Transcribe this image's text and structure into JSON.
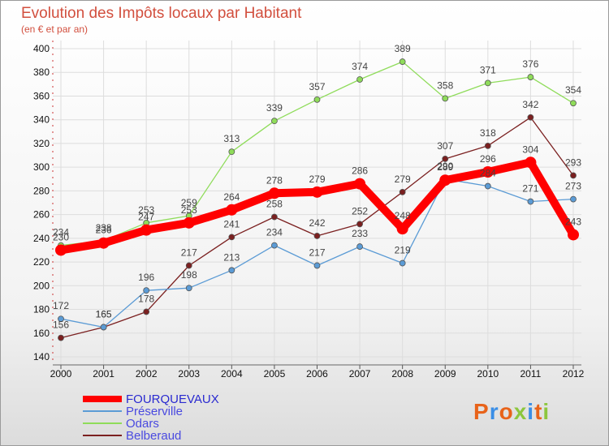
{
  "chart_data": {
    "type": "line",
    "title": "Evolution des Impôts locaux par Habitant",
    "subtitle": "(en € et par an)",
    "xlabel": "",
    "ylabel": "",
    "ylim": [
      140,
      400
    ],
    "yticks": [
      140,
      160,
      180,
      200,
      220,
      240,
      260,
      280,
      300,
      320,
      340,
      360,
      380,
      400
    ],
    "x": [
      2000,
      2001,
      2002,
      2003,
      2004,
      2005,
      2006,
      2007,
      2008,
      2009,
      2010,
      2011,
      2012
    ],
    "grid": true,
    "legend_position": "bottom-left",
    "series": [
      {
        "name": "FOURQUEVAUX",
        "color": "#ff0000",
        "values": [
          230,
          236,
          247,
          253,
          264,
          278,
          279,
          286,
          248,
          289,
          296,
          304,
          243
        ]
      },
      {
        "name": "Préserville",
        "color": "#5b9bd5",
        "values": [
          172,
          165,
          196,
          198,
          213,
          234,
          217,
          233,
          219,
          290,
          284,
          271,
          273
        ]
      },
      {
        "name": "Odars",
        "color": "#8fdc5a",
        "values": [
          234,
          238,
          253,
          259,
          313,
          339,
          357,
          374,
          389,
          358,
          371,
          376,
          354
        ]
      },
      {
        "name": "Belberaud",
        "color": "#7b2020",
        "values": [
          156,
          165,
          178,
          217,
          241,
          258,
          242,
          252,
          279,
          307,
          318,
          342,
          293
        ]
      }
    ]
  },
  "brand": {
    "label": "Proxiti",
    "colors": [
      "#e8631a",
      "#3a8ee6",
      "#e8631a",
      "#8cc63e",
      "#3a8ee6",
      "#e8631a",
      "#8cc63e"
    ]
  }
}
